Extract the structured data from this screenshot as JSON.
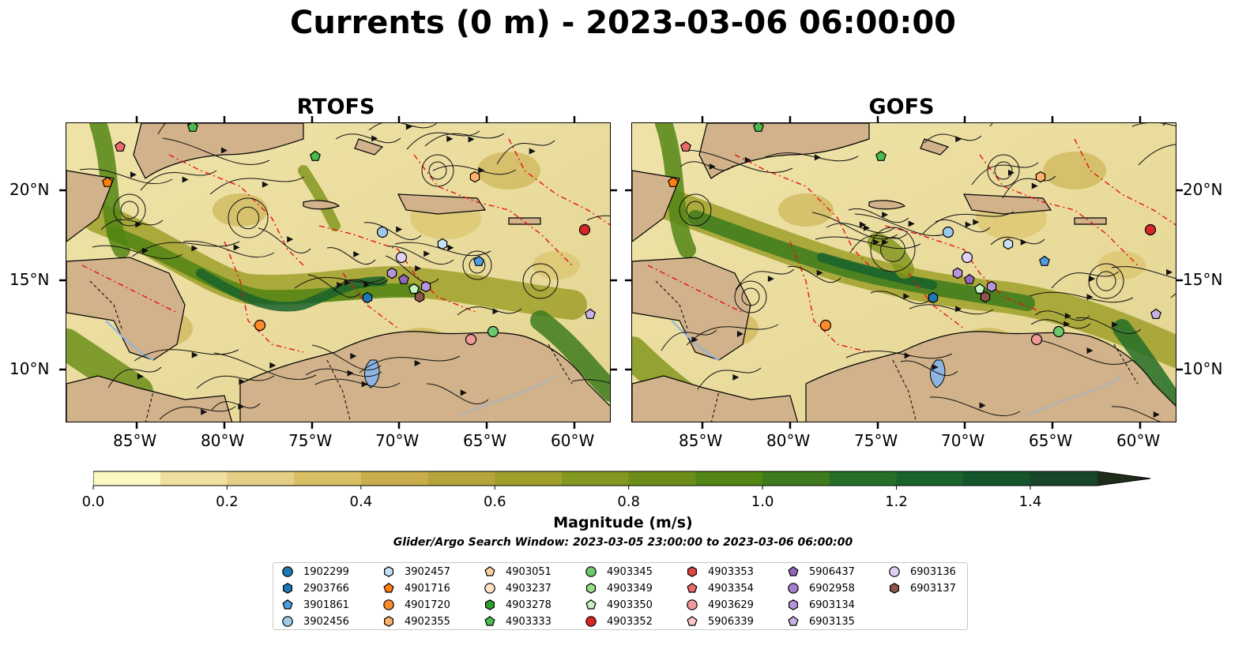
{
  "title": "Currents (0 m) - 2023-03-06 06:00:00",
  "panels": [
    {
      "title": "RTOFS"
    },
    {
      "title": "GOFS"
    }
  ],
  "axes": {
    "lon_ticks": [
      "85°W",
      "80°W",
      "75°W",
      "70°W",
      "65°W",
      "60°W"
    ],
    "lat_ticks": [
      "20°N",
      "15°N",
      "10°N"
    ]
  },
  "colorbar": {
    "label": "Magnitude (m/s)",
    "ticks": [
      "0.0",
      "0.2",
      "0.4",
      "0.6",
      "0.8",
      "1.0",
      "1.2",
      "1.4"
    ],
    "colors": [
      "#fdf7c4",
      "#efe0a0",
      "#e4ce84",
      "#d8bf63",
      "#c8ad4a",
      "#b6a43a",
      "#9fa02a",
      "#84981f",
      "#6c8e19",
      "#528514",
      "#3d7b1c",
      "#256f28",
      "#1a622c",
      "#15552b",
      "#174728",
      "#1b3a22",
      "#1d2d1a"
    ]
  },
  "search_window": "Glider/Argo Search Window: 2023-03-05 23:00:00 to 2023-03-06 06:00:00",
  "legend": [
    {
      "id": "1902299",
      "color": "#1f77b4",
      "shape": "circle"
    },
    {
      "id": "2903766",
      "color": "#1f77b4",
      "shape": "hexagon"
    },
    {
      "id": "3901861",
      "color": "#4d9de0",
      "shape": "pentagon"
    },
    {
      "id": "3902456",
      "color": "#9ecae9",
      "shape": "circle"
    },
    {
      "id": "3902457",
      "color": "#c6e2f7",
      "shape": "hexagon"
    },
    {
      "id": "4901716",
      "color": "#ff7f0e",
      "shape": "pentagon"
    },
    {
      "id": "4901720",
      "color": "#ff8c2a",
      "shape": "circle"
    },
    {
      "id": "4902355",
      "color": "#ffb26b",
      "shape": "hexagon"
    },
    {
      "id": "4903051",
      "color": "#ffcf9e",
      "shape": "pentagon"
    },
    {
      "id": "4903237",
      "color": "#ffe2c4",
      "shape": "circle"
    },
    {
      "id": "4903278",
      "color": "#2ca02c",
      "shape": "hexagon"
    },
    {
      "id": "4903333",
      "color": "#4cbb4c",
      "shape": "pentagon"
    },
    {
      "id": "4903345",
      "color": "#6cc86c",
      "shape": "circle"
    },
    {
      "id": "4903349",
      "color": "#98df8a",
      "shape": "hexagon"
    },
    {
      "id": "4903350",
      "color": "#c7f0c0",
      "shape": "pentagon"
    },
    {
      "id": "4903352",
      "color": "#d62728",
      "shape": "circle"
    },
    {
      "id": "4903353",
      "color": "#e04646",
      "shape": "hexagon"
    },
    {
      "id": "4903354",
      "color": "#ea6b6b",
      "shape": "pentagon"
    },
    {
      "id": "4903629",
      "color": "#f29a9a",
      "shape": "circle"
    },
    {
      "id": "5906339",
      "color": "#fbc8c8",
      "shape": "pentagon"
    },
    {
      "id": "5906437",
      "color": "#9467bd",
      "shape": "pentagon"
    },
    {
      "id": "6902958",
      "color": "#a47fcf",
      "shape": "circle"
    },
    {
      "id": "6903134",
      "color": "#b596db",
      "shape": "hexagon"
    },
    {
      "id": "6903135",
      "color": "#c9b0e6",
      "shape": "pentagon"
    },
    {
      "id": "6903136",
      "color": "#e0d0f5",
      "shape": "circle"
    },
    {
      "id": "6903137",
      "color": "#8c564b",
      "shape": "hexagon"
    }
  ]
}
